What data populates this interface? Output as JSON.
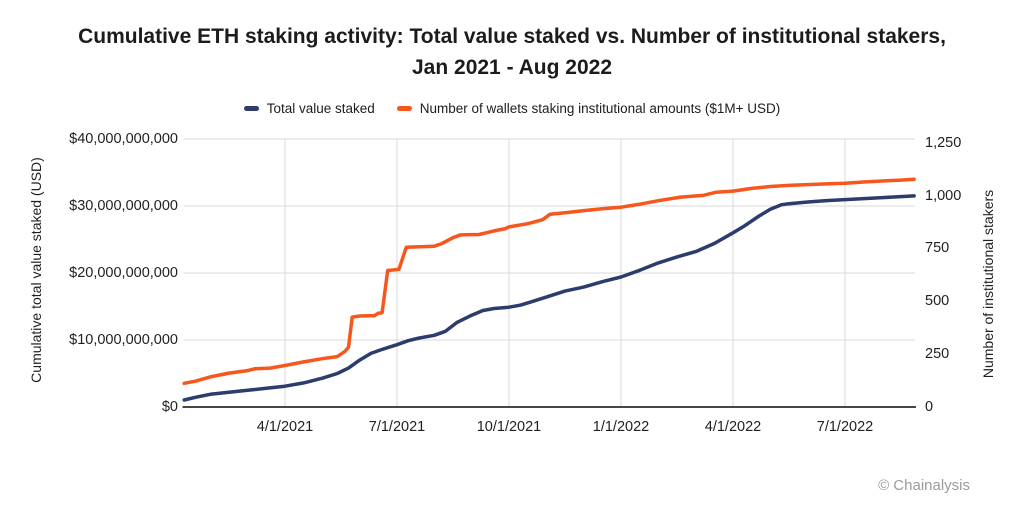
{
  "title": {
    "line1": "Cumulative ETH staking activity: Total value staked vs. Number of institutional stakers,",
    "line2": "Jan 2021 - Aug 2022"
  },
  "legend": [
    {
      "label": "Total value staked",
      "color": "#2b3c6d"
    },
    {
      "label": "Number of wallets staking institutional amounts ($1M+ USD)",
      "color": "#f7571d"
    }
  ],
  "footer": {
    "credit": "© Chainalysis"
  },
  "colors": {
    "navy": "#2b3c6d",
    "orange": "#f7571d",
    "gridline": "#d9d9d9",
    "axis_line": "#474747"
  },
  "chart_data": {
    "type": "line",
    "title": "Cumulative ETH staking activity: Total value staked vs. Number of institutional stakers, Jan 2021 - Aug 2022",
    "x_unit": "months_since_2021_01_01",
    "grid": "both",
    "legend_position": "top-center",
    "x_axis": {
      "tick_labels": [
        "4/1/2021",
        "7/1/2021",
        "10/1/2021",
        "1/1/2022",
        "4/1/2022",
        "7/1/2022"
      ],
      "tick_months": [
        3,
        6,
        9,
        12,
        15,
        18
      ],
      "range_months": [
        0.3,
        19.9
      ]
    },
    "y_left": {
      "label": "Cumulative total value staked (USD)",
      "tick_labels": [
        "$0",
        "$10,000,000,000",
        "$20,000,000,000",
        "$30,000,000,000",
        "$40,000,000,000"
      ],
      "tick_values_billions": [
        0,
        10,
        20,
        30,
        40
      ],
      "range_usd": [
        0,
        40000000000
      ]
    },
    "y_right": {
      "label": "Number of institutional stakers",
      "tick_labels": [
        "0",
        "250",
        "500",
        "750",
        "1,000",
        "1,250"
      ],
      "tick_values": [
        0,
        250,
        500,
        750,
        1000,
        1250
      ],
      "range": [
        0,
        1250
      ]
    },
    "series": [
      {
        "name": "Total value staked",
        "axis": "left",
        "unit": "USD_billions",
        "color": "#2b3c6d",
        "points": [
          [
            0.3,
            1.05
          ],
          [
            0.6,
            1.45
          ],
          [
            1.0,
            1.9
          ],
          [
            1.5,
            2.2
          ],
          [
            2.0,
            2.5
          ],
          [
            2.5,
            2.8
          ],
          [
            3.0,
            3.1
          ],
          [
            3.5,
            3.6
          ],
          [
            4.0,
            4.3
          ],
          [
            4.4,
            5.0
          ],
          [
            4.7,
            5.8
          ],
          [
            5.0,
            7.0
          ],
          [
            5.3,
            8.0
          ],
          [
            5.6,
            8.6
          ],
          [
            6.0,
            9.3
          ],
          [
            6.3,
            9.9
          ],
          [
            6.6,
            10.3
          ],
          [
            7.0,
            10.7
          ],
          [
            7.3,
            11.3
          ],
          [
            7.6,
            12.6
          ],
          [
            8.0,
            13.7
          ],
          [
            8.3,
            14.4
          ],
          [
            8.6,
            14.7
          ],
          [
            9.0,
            14.9
          ],
          [
            9.3,
            15.2
          ],
          [
            9.6,
            15.7
          ],
          [
            10.0,
            16.4
          ],
          [
            10.5,
            17.3
          ],
          [
            11.0,
            17.9
          ],
          [
            11.5,
            18.7
          ],
          [
            12.0,
            19.4
          ],
          [
            12.5,
            20.4
          ],
          [
            13.0,
            21.5
          ],
          [
            13.5,
            22.4
          ],
          [
            14.0,
            23.2
          ],
          [
            14.5,
            24.4
          ],
          [
            15.0,
            26.0
          ],
          [
            15.3,
            27.0
          ],
          [
            15.7,
            28.5
          ],
          [
            16.0,
            29.5
          ],
          [
            16.3,
            30.2
          ],
          [
            16.5,
            30.35
          ],
          [
            17.0,
            30.6
          ],
          [
            17.5,
            30.8
          ],
          [
            18.0,
            30.95
          ],
          [
            18.5,
            31.1
          ],
          [
            19.0,
            31.25
          ],
          [
            19.5,
            31.4
          ],
          [
            19.85,
            31.5
          ]
        ]
      },
      {
        "name": "Number of wallets staking institutional amounts ($1M+ USD)",
        "axis": "right",
        "unit": "wallets",
        "color": "#f7571d",
        "points": [
          [
            0.3,
            112
          ],
          [
            0.6,
            122
          ],
          [
            1.0,
            142
          ],
          [
            1.5,
            160
          ],
          [
            2.0,
            172
          ],
          [
            2.2,
            181
          ],
          [
            2.6,
            184
          ],
          [
            3.0,
            196
          ],
          [
            3.5,
            213
          ],
          [
            4.0,
            228
          ],
          [
            4.4,
            238
          ],
          [
            4.6,
            262
          ],
          [
            4.7,
            282
          ],
          [
            4.8,
            425
          ],
          [
            5.0,
            430
          ],
          [
            5.4,
            432
          ],
          [
            5.5,
            443
          ],
          [
            5.6,
            445
          ],
          [
            5.75,
            645
          ],
          [
            6.05,
            650
          ],
          [
            6.25,
            755
          ],
          [
            7.0,
            760
          ],
          [
            7.2,
            772
          ],
          [
            7.5,
            800
          ],
          [
            7.7,
            813
          ],
          [
            8.2,
            815
          ],
          [
            8.6,
            832
          ],
          [
            8.9,
            843
          ],
          [
            9.0,
            851
          ],
          [
            9.5,
            866
          ],
          [
            9.9,
            885
          ],
          [
            10.1,
            911
          ],
          [
            10.5,
            918
          ],
          [
            11.0,
            928
          ],
          [
            11.5,
            937
          ],
          [
            12.0,
            944
          ],
          [
            12.5,
            958
          ],
          [
            13.0,
            975
          ],
          [
            13.6,
            992
          ],
          [
            14.2,
            1000
          ],
          [
            14.55,
            1015
          ],
          [
            15.0,
            1020
          ],
          [
            15.5,
            1033
          ],
          [
            16.0,
            1042
          ],
          [
            16.5,
            1047
          ],
          [
            17.0,
            1051
          ],
          [
            17.5,
            1054
          ],
          [
            18.0,
            1057
          ],
          [
            18.5,
            1063
          ],
          [
            19.0,
            1068
          ],
          [
            19.5,
            1072
          ],
          [
            19.85,
            1076
          ]
        ]
      }
    ]
  }
}
